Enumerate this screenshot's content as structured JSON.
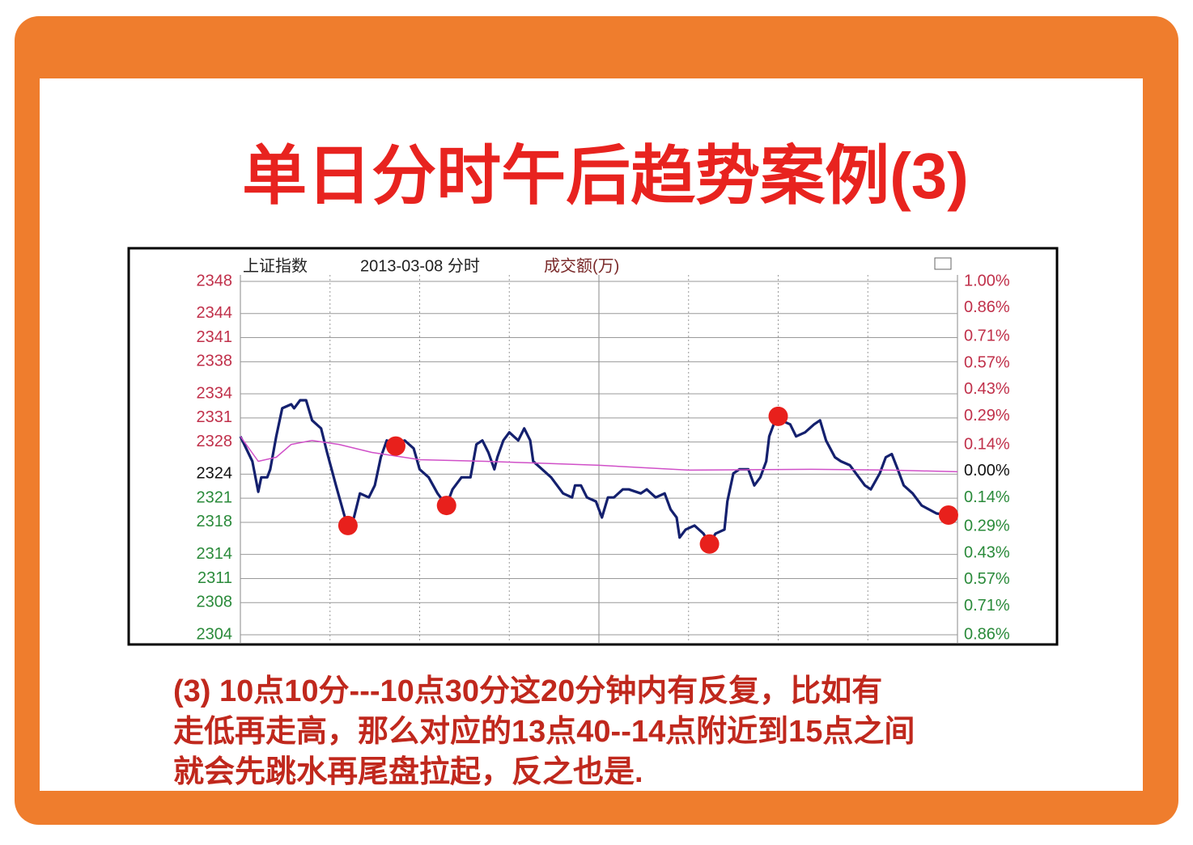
{
  "header": {
    "title": "单日分时午后趋势案例(3)"
  },
  "chart_data": {
    "type": "line",
    "subtitle": "上证指数",
    "date_label": "2013-03-08 分时",
    "measure_label": "成交额(万)",
    "xlim": [
      0,
      240
    ],
    "ylim": [
      2304,
      2348
    ],
    "yticks": [
      2348,
      2344,
      2341,
      2338,
      2334,
      2331,
      2328,
      2324,
      2321,
      2318,
      2314,
      2311,
      2308,
      2304
    ],
    "y2lim": [
      -0.86,
      1.0
    ],
    "y2ticks": [
      {
        "value": 1.0,
        "label": "1.00%"
      },
      {
        "value": 0.86,
        "label": "0.86%"
      },
      {
        "value": 0.71,
        "label": "0.71%"
      },
      {
        "value": 0.57,
        "label": "0.57%"
      },
      {
        "value": 0.43,
        "label": "0.43%"
      },
      {
        "value": 0.29,
        "label": "0.29%"
      },
      {
        "value": 0.14,
        "label": "0.14%"
      },
      {
        "value": 0.0,
        "label": "0.00%"
      },
      {
        "value": -0.14,
        "label": "0.14%"
      },
      {
        "value": -0.29,
        "label": "0.29%"
      },
      {
        "value": -0.43,
        "label": "0.43%"
      },
      {
        "value": -0.57,
        "label": "0.57%"
      },
      {
        "value": -0.71,
        "label": "0.71%"
      },
      {
        "value": -0.86,
        "label": "0.86%"
      }
    ],
    "grid": true,
    "series": [
      {
        "color": "#14206e",
        "x": [
          0,
          4,
          6,
          7,
          9,
          10,
          12,
          14,
          17,
          18,
          20,
          22,
          24,
          27,
          29,
          32,
          35,
          36,
          38,
          40,
          43,
          45,
          47,
          49,
          52,
          55,
          58,
          60,
          63,
          66,
          69,
          71,
          74,
          77,
          79,
          81,
          83,
          85,
          86,
          88,
          90,
          93,
          95,
          97,
          98,
          101,
          104,
          108,
          111,
          112,
          114,
          116,
          119,
          121,
          123,
          125,
          128,
          130,
          134,
          136,
          139,
          142,
          144,
          146,
          147,
          149,
          152,
          155,
          157,
          159,
          162,
          163,
          165,
          167,
          170,
          172,
          174,
          176,
          177,
          179,
          181,
          184,
          186,
          189,
          192,
          194,
          196,
          199,
          201,
          204,
          207,
          209,
          211,
          214,
          216,
          218,
          220,
          222,
          225,
          228,
          233,
          237
        ],
        "values": [
          2328.7,
          2325.6,
          2321.8,
          2323.6,
          2323.6,
          2324.6,
          2328.7,
          2332.2,
          2332.7,
          2332.2,
          2333.2,
          2333.2,
          2330.7,
          2329.7,
          2326.7,
          2322.6,
          2318.6,
          2317.8,
          2318.6,
          2321.6,
          2321.1,
          2322.6,
          2326.1,
          2328.2,
          2327.7,
          2328.2,
          2327.2,
          2324.6,
          2323.6,
          2321.6,
          2320.1,
          2322.1,
          2323.6,
          2323.6,
          2327.7,
          2328.2,
          2326.7,
          2324.6,
          2326.1,
          2328.2,
          2329.2,
          2328.2,
          2329.7,
          2328.2,
          2325.6,
          2324.6,
          2323.6,
          2321.6,
          2321.1,
          2322.6,
          2322.6,
          2321.1,
          2320.6,
          2318.6,
          2321.1,
          2321.1,
          2322.1,
          2322.1,
          2321.6,
          2322.1,
          2321.1,
          2321.6,
          2319.6,
          2318.6,
          2316.1,
          2317.1,
          2317.6,
          2316.6,
          2315.3,
          2316.6,
          2317.1,
          2320.6,
          2324.1,
          2324.6,
          2324.6,
          2322.6,
          2323.6,
          2325.6,
          2328.7,
          2330.7,
          2330.7,
          2330.2,
          2328.7,
          2329.2,
          2330.2,
          2330.7,
          2328.2,
          2326.1,
          2325.6,
          2325.1,
          2323.6,
          2322.6,
          2322.1,
          2324.1,
          2326.1,
          2326.5,
          2324.6,
          2322.6,
          2321.6,
          2320.1,
          2319.1,
          2318.9
        ]
      },
      {
        "color": "#d050c8",
        "x": [
          0,
          6,
          12,
          17,
          24,
          33,
          44,
          60,
          82,
          98,
          120,
          150,
          191,
          218,
          240
        ],
        "values": [
          2328.7,
          2325.6,
          2326.1,
          2327.7,
          2328.2,
          2327.7,
          2326.7,
          2325.8,
          2325.6,
          2325.4,
          2325.1,
          2324.5,
          2324.6,
          2324.5,
          2324.3
        ]
      }
    ],
    "highlights": {
      "color": "#e8201c",
      "x": [
        36,
        52,
        69,
        157,
        180,
        237
      ],
      "values": [
        2317.6,
        2327.5,
        2320.1,
        2315.3,
        2331.2,
        2318.9
      ]
    }
  },
  "caption": {
    "lines": [
      "(3) 10点10分---10点30分这20分钟内有反复，比如有",
      "走低再走高，那么对应的13点40--14点附近到15点之间",
      "就会先跳水再尾盘拉起，反之也是."
    ]
  }
}
